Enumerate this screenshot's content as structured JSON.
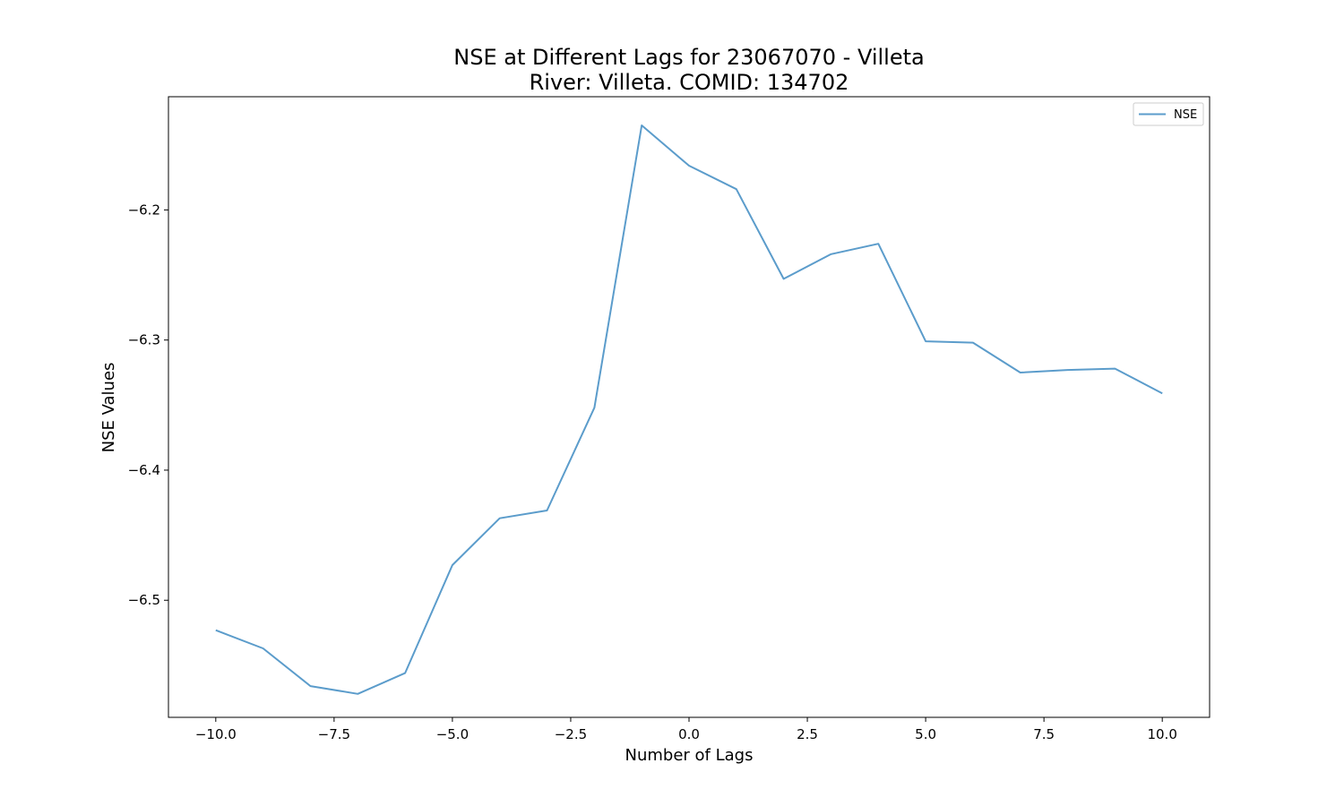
{
  "chart_data": {
    "type": "line",
    "title": "NSE at Different Lags for 23067070 - Villeta",
    "subtitle": "River: Villeta. COMID: 134702",
    "xlabel": "Number of Lags",
    "ylabel": "NSE Values",
    "xlim": [
      -11,
      11
    ],
    "ylim": [
      -6.59,
      -6.113
    ],
    "x_ticks": [
      -10.0,
      -7.5,
      -5.0,
      -2.5,
      0.0,
      2.5,
      5.0,
      7.5,
      10.0
    ],
    "x_tick_labels": [
      "−10.0",
      "−7.5",
      "−5.0",
      "−2.5",
      "0.0",
      "2.5",
      "5.0",
      "7.5",
      "10.0"
    ],
    "y_ticks": [
      -6.5,
      -6.4,
      -6.3,
      -6.2
    ],
    "y_tick_labels": [
      "−6.5",
      "−6.4",
      "−6.3",
      "−6.2"
    ],
    "grid": false,
    "legend_position": "top-right",
    "series": [
      {
        "name": "NSE",
        "color": "#5b9ccb",
        "x": [
          -10,
          -9,
          -8,
          -7,
          -6,
          -5,
          -4,
          -3,
          -2,
          -1,
          0,
          1,
          2,
          3,
          4,
          5,
          6,
          7,
          8,
          9,
          10
        ],
        "y": [
          -6.523,
          -6.537,
          -6.566,
          -6.572,
          -6.556,
          -6.473,
          -6.437,
          -6.431,
          -6.352,
          -6.135,
          -6.166,
          -6.184,
          -6.253,
          -6.234,
          -6.226,
          -6.301,
          -6.302,
          -6.325,
          -6.323,
          -6.322,
          -6.341
        ]
      }
    ]
  }
}
